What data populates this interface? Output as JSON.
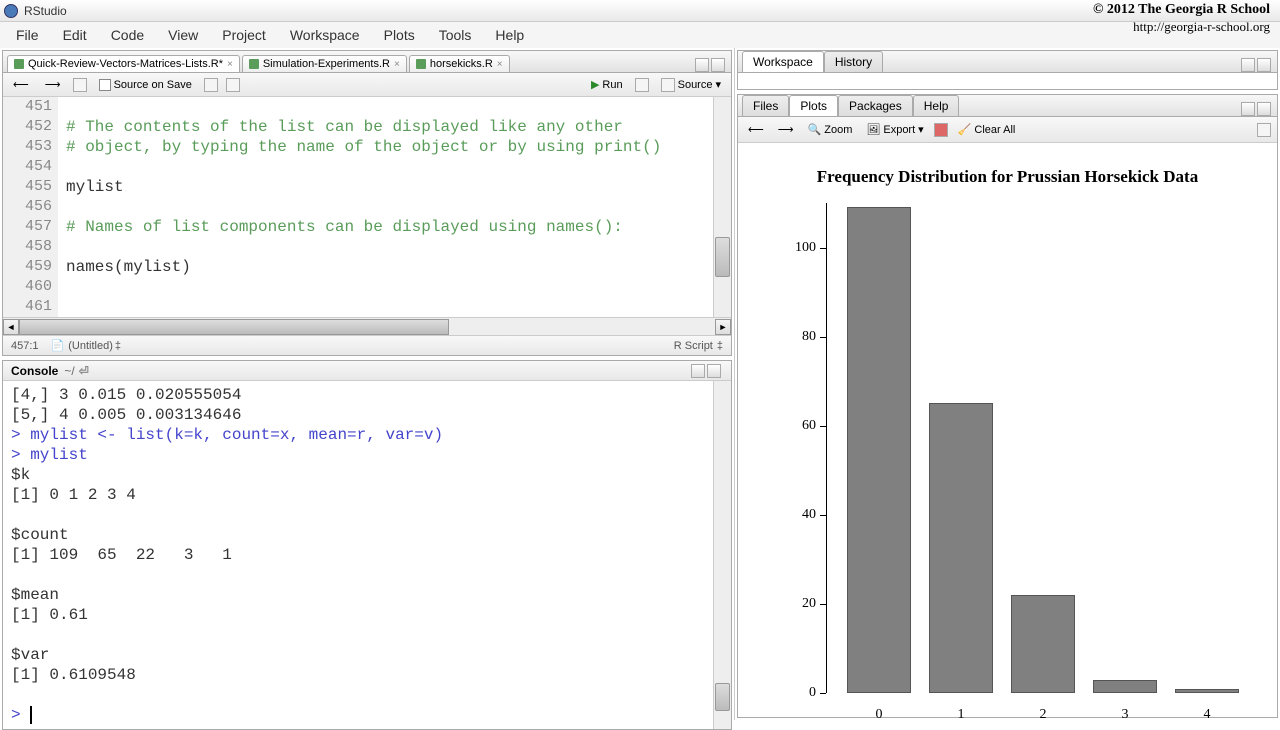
{
  "window": {
    "title": "RStudio"
  },
  "copyright": {
    "line1": "© 2012 The Georgia R School",
    "line2": "http://georgia-r-school.org"
  },
  "menu": {
    "items": [
      "File",
      "Edit",
      "Code",
      "View",
      "Project",
      "Workspace",
      "Plots",
      "Tools",
      "Help"
    ]
  },
  "source": {
    "tabs": [
      {
        "label": "Quick-Review-Vectors-Matrices-Lists.R*",
        "active": true
      },
      {
        "label": "Simulation-Experiments.R",
        "active": false
      },
      {
        "label": "horsekicks.R",
        "active": false
      }
    ],
    "toolbar": {
      "sourceOnSave": "Source on Save",
      "run": "Run",
      "source": "Source"
    },
    "gutter_start": 451,
    "line_count": 11,
    "lines": [
      "",
      "# The contents of the list can be displayed like any other",
      "# object, by typing the name of the object or by using print()",
      "",
      "mylist",
      "",
      "# Names of list components can be displayed using names():",
      "",
      "names(mylist)",
      "",
      ""
    ],
    "is_comment": [
      false,
      true,
      true,
      false,
      false,
      false,
      true,
      false,
      false,
      false,
      false
    ],
    "status": {
      "pos": "457:1",
      "doc": "(Untitled)",
      "lang": "R Script"
    }
  },
  "console": {
    "title": "Console",
    "path": "~/",
    "lines": [
      {
        "t": "out",
        "text": "[4,] 3 0.015 0.020555054"
      },
      {
        "t": "out",
        "text": "[5,] 4 0.005 0.003134646"
      },
      {
        "t": "in",
        "text": "mylist <- list(k=k, count=x, mean=r, var=v)"
      },
      {
        "t": "in",
        "text": "mylist"
      },
      {
        "t": "out",
        "text": "$k"
      },
      {
        "t": "out",
        "text": "[1] 0 1 2 3 4"
      },
      {
        "t": "out",
        "text": ""
      },
      {
        "t": "out",
        "text": "$count"
      },
      {
        "t": "out",
        "text": "[1] 109  65  22   3   1"
      },
      {
        "t": "out",
        "text": ""
      },
      {
        "t": "out",
        "text": "$mean"
      },
      {
        "t": "out",
        "text": "[1] 0.61"
      },
      {
        "t": "out",
        "text": ""
      },
      {
        "t": "out",
        "text": "$var"
      },
      {
        "t": "out",
        "text": "[1] 0.6109548"
      },
      {
        "t": "out",
        "text": ""
      },
      {
        "t": "prompt",
        "text": ""
      }
    ]
  },
  "workspace": {
    "tabs": [
      "Workspace",
      "History"
    ],
    "active": 0
  },
  "plots": {
    "tabs": [
      "Files",
      "Plots",
      "Packages",
      "Help"
    ],
    "active": 1,
    "toolbar": {
      "zoom": "Zoom",
      "export": "Export",
      "clearAll": "Clear All"
    },
    "chart": {
      "title": "Frequency Distribution for Prussian Horsekick Data",
      "type": "bar",
      "categories": [
        "0",
        "1",
        "2",
        "3",
        "4"
      ],
      "values": [
        109,
        65,
        22,
        3,
        1
      ],
      "bar_color": "#808080",
      "ylim": [
        0,
        110
      ],
      "yticks": [
        0,
        20,
        40,
        60,
        80,
        100
      ],
      "background": "#ffffff",
      "title_fontsize": 17,
      "axis_fontsize": 14
    }
  }
}
